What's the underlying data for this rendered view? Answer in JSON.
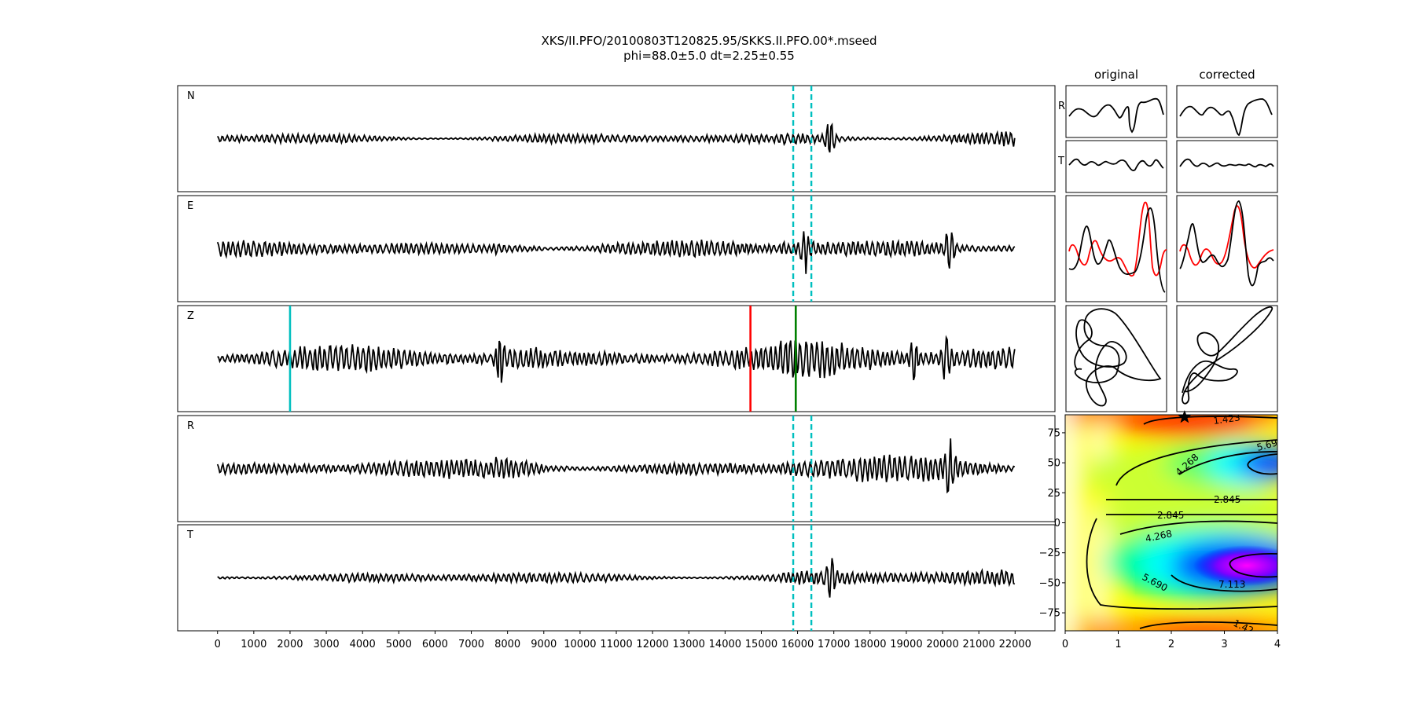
{
  "title_line1": "XKS/II.PFO/20100803T120825.95/SKKS.II.PFO.00*.mseed",
  "title_line2": "phi=88.0±5.0 dt=2.25±0.55",
  "col_original": "original",
  "col_corrected": "corrected",
  "colors": {
    "trace": "#000000",
    "window": "#00bfbf",
    "pick_red": "#ff0000",
    "pick_green": "#008000",
    "radial_red": "#ff0000"
  },
  "chart_data": [
    {
      "type": "line",
      "subplot": "seismogram traces",
      "channels": [
        "N",
        "E",
        "Z",
        "R",
        "T"
      ],
      "x_ticks": [
        0,
        1000,
        2000,
        3000,
        4000,
        5000,
        6000,
        7000,
        8000,
        9000,
        10000,
        11000,
        12000,
        13000,
        14000,
        15000,
        16000,
        17000,
        18000,
        19000,
        20000,
        21000,
        22000
      ],
      "xlim": [
        -1100,
        23100
      ],
      "data_range": [
        0,
        22000
      ],
      "window_lines": {
        "channels": [
          "N",
          "E",
          "R",
          "T"
        ],
        "x": [
          15880,
          16380
        ],
        "style": "dashed",
        "color": "#00bfbf"
      },
      "vertical_markers": {
        "channel": "Z",
        "lines": [
          {
            "x": 2000,
            "color": "#00bfbf"
          },
          {
            "x": 14700,
            "color": "#ff0000"
          },
          {
            "x": 15950,
            "color": "#008000"
          }
        ]
      },
      "amplitude_events": [
        {
          "channel": "N",
          "x": 16900,
          "amp": 0.9
        },
        {
          "channel": "E",
          "x": 16200,
          "amp": 1.0
        },
        {
          "channel": "E",
          "x": 20200,
          "amp": 1.0
        },
        {
          "channel": "Z",
          "x": 7800,
          "amp": 1.0
        },
        {
          "channel": "Z",
          "x": 19200,
          "amp": 1.0
        },
        {
          "channel": "Z",
          "x": 20100,
          "amp": 1.0
        },
        {
          "channel": "R",
          "x": 20200,
          "amp": 1.0
        },
        {
          "channel": "T",
          "x": 16900,
          "amp": 1.0
        }
      ]
    },
    {
      "type": "line",
      "subplot": "window waveforms",
      "panels": [
        "original R",
        "original T",
        "corrected R",
        "corrected T",
        "original R/T overlay",
        "corrected R/T overlay"
      ],
      "row_labels": [
        "R",
        "T"
      ]
    },
    {
      "type": "line",
      "subplot": "particle motion",
      "panels": [
        "original",
        "corrected"
      ]
    },
    {
      "type": "heatmap",
      "subplot": "error surface",
      "x_ticks": [
        0,
        1,
        2,
        3,
        4
      ],
      "xlim": [
        0,
        4
      ],
      "y_ticks": [
        75,
        50,
        25,
        0,
        -25,
        -50,
        -75
      ],
      "ylim": [
        -90,
        90
      ],
      "contour_labels": [
        "1.423",
        "5.69",
        "4.268",
        "2.845",
        "2.845",
        "4.268",
        "5.690",
        "7.113",
        "1.42"
      ],
      "best_fit": {
        "dt": 2.25,
        "phi": 88.0,
        "marker": "star"
      }
    }
  ]
}
